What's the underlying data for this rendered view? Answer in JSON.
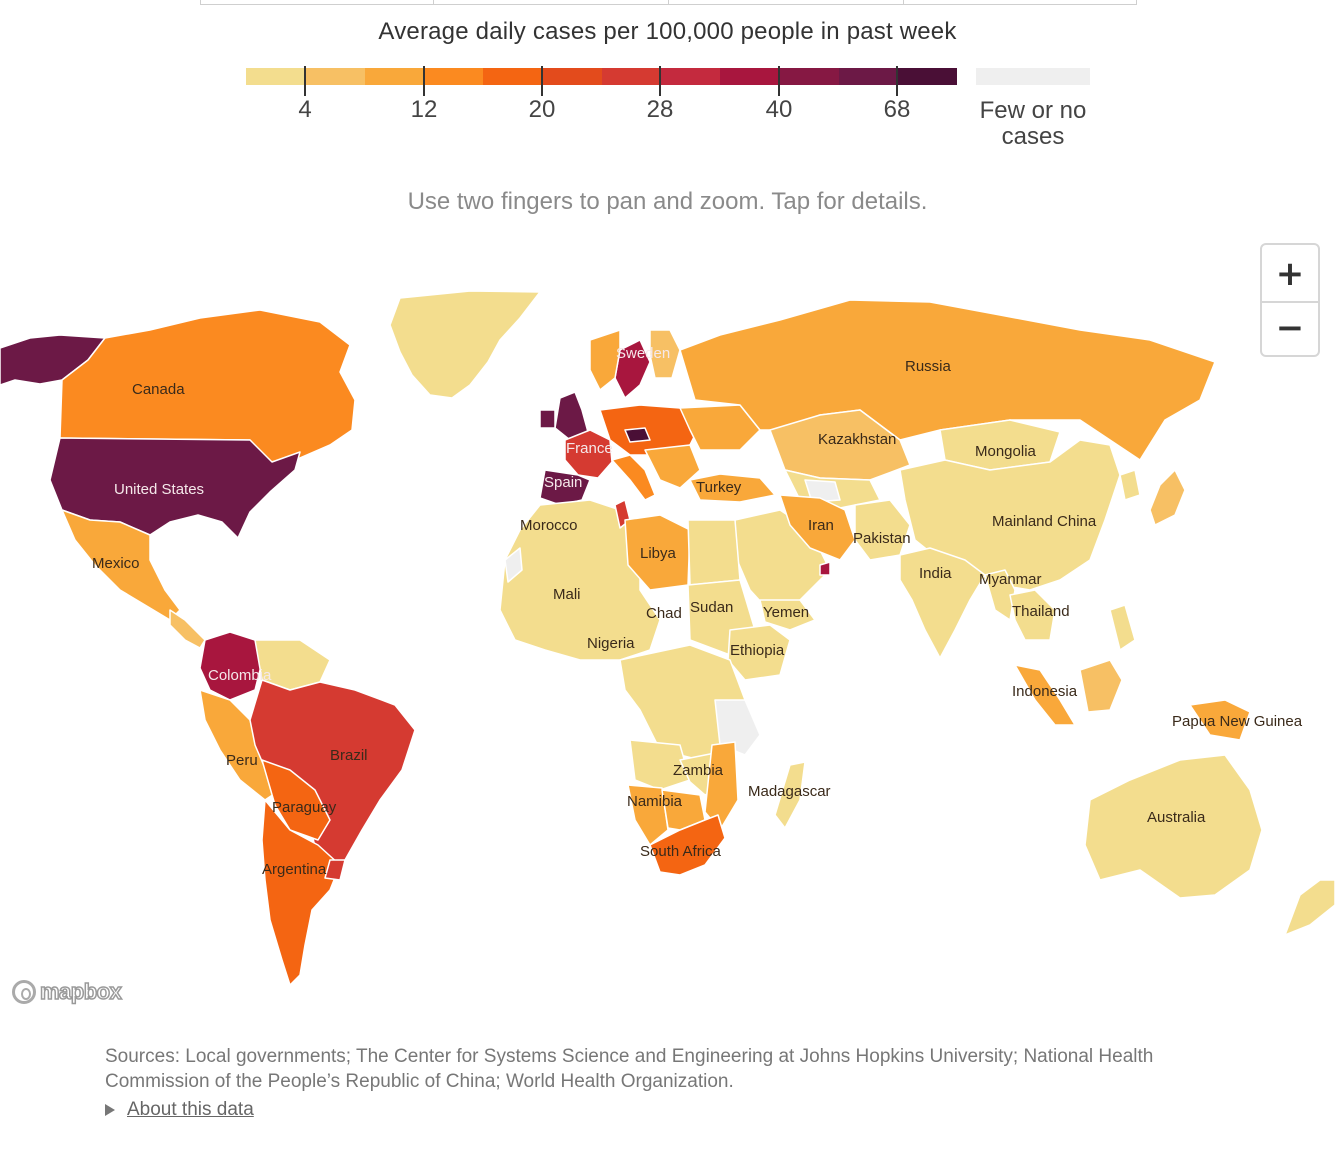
{
  "legend": {
    "title": "Average daily cases per 100,000 people in past week",
    "colors": [
      "#f3dd8e",
      "#f7c064",
      "#f9a83a",
      "#fb8a20",
      "#f46512",
      "#e34b1c",
      "#d53a31",
      "#c42a3e",
      "#a8163e",
      "#861843",
      "#6c1946",
      "#4a0f36"
    ],
    "ticks": [
      "4",
      "12",
      "20",
      "28",
      "40",
      "68"
    ],
    "no_cases_label": "Few or no cases",
    "no_cases_color": "#efefef"
  },
  "hint": "Use two fingers to pan and zoom. Tap for details.",
  "zoom": {
    "in_label": "+",
    "out_label": "−"
  },
  "attribution": "mapbox",
  "map_colors": {
    "pale": "#f3dd8e",
    "light_orange": "#f7c064",
    "orange": "#f9a83a",
    "dark_orange": "#fb8a20",
    "red_orange": "#f46512",
    "red": "#d53a31",
    "crimson": "#a8163e",
    "plum": "#6c1946",
    "none": "#efefef"
  },
  "countries": {
    "canada": "Canada",
    "usa": "United States",
    "mexico": "Mexico",
    "colombia": "Colombia",
    "peru": "Peru",
    "brazil": "Brazil",
    "paraguay": "Paraguay",
    "argentina": "Argentina",
    "sweden": "Sweden",
    "france": "France",
    "spain": "Spain",
    "morocco": "Morocco",
    "libya": "Libya",
    "mali": "Mali",
    "chad": "Chad",
    "sudan": "Sudan",
    "nigeria": "Nigeria",
    "ethiopia": "Ethiopia",
    "yemen": "Yemen",
    "turkey": "Turkey",
    "iran": "Iran",
    "pakistan": "Pakistan",
    "kazakhstan": "Kazakhstan",
    "russia": "Russia",
    "mongolia": "Mongolia",
    "china": "Mainland China",
    "india": "India",
    "myanmar": "Myanmar",
    "thailand": "Thailand",
    "indonesia": "Indonesia",
    "png": "Papua New Guinea",
    "australia": "Australia",
    "zambia": "Zambia",
    "namibia": "Namibia",
    "madagascar": "Madagascar",
    "south_africa": "South Africa"
  },
  "sources": "Sources: Local governments; The Center for Systems Science and Engineering at Johns Hopkins University; National Health Commission of the People’s Republic of China; World Health Organization.",
  "about_link": "About this data"
}
